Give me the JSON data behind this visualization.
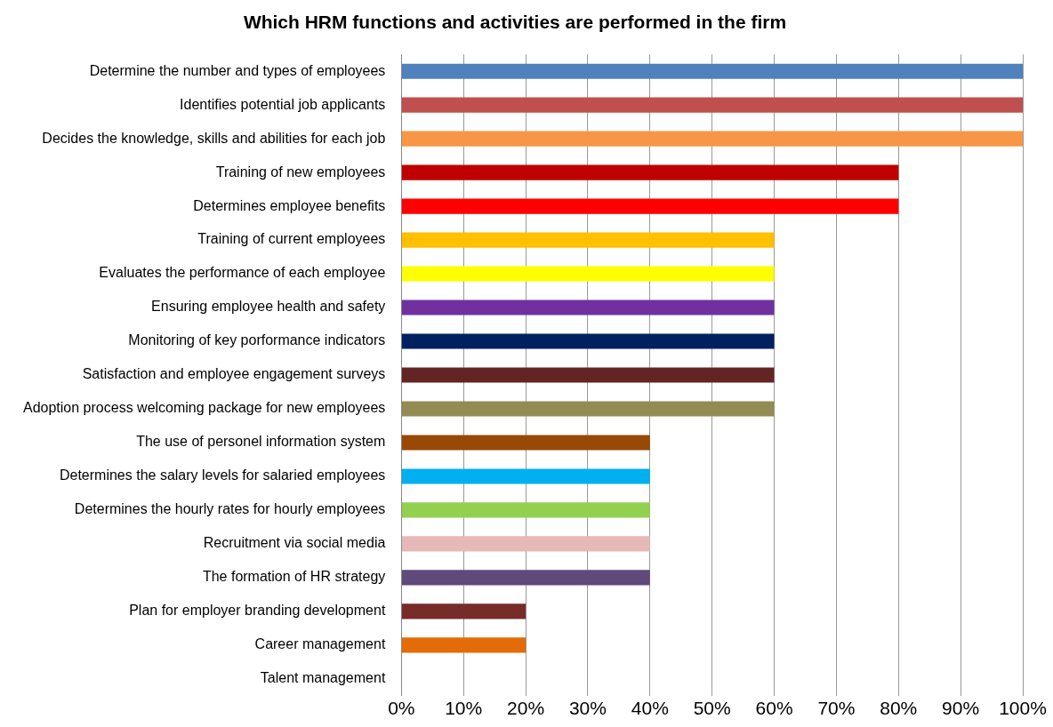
{
  "chart_data": {
    "type": "bar",
    "orientation": "horizontal",
    "title": "Which HRM functions and activities are performed in the firm",
    "categories": [
      "Determine the number and types of employees",
      "Identifies potential job applicants",
      "Decides the knowledge, skills and abilities for each job",
      "Training of new employees",
      "Determines employee benefits",
      "Training of current employees",
      "Evaluates the performance of each employee",
      "Ensuring employee health and safety",
      "Monitoring of key porformance indicators",
      "Satisfaction and employee engagement surveys",
      "Adoption process welcoming package for new employees",
      "The use of personel information system",
      "Determines the salary levels for salaried employees",
      "Determines the hourly rates for hourly employees",
      "Recruitment via social media",
      "The formation of HR strategy",
      "Plan for employer branding development",
      "Career management",
      "Talent management"
    ],
    "values": [
      100,
      100,
      100,
      80,
      80,
      60,
      60,
      60,
      60,
      60,
      60,
      40,
      40,
      40,
      40,
      40,
      20,
      20,
      0
    ],
    "colors": [
      "#4f81bd",
      "#c0504d",
      "#f79646",
      "#c00000",
      "#ff0000",
      "#ffc000",
      "#ffff00",
      "#7030a0",
      "#002060",
      "#632523",
      "#948a54",
      "#984807",
      "#00b0f0",
      "#92d050",
      "#e6b9b8",
      "#604a7b",
      "#772c2a",
      "#e36c09",
      "#4bacc6"
    ],
    "xlim": [
      0,
      100
    ],
    "xticks": [
      {
        "value": 0,
        "label": "0%"
      },
      {
        "value": 10,
        "label": "10%"
      },
      {
        "value": 20,
        "label": "20%"
      },
      {
        "value": 30,
        "label": "30%"
      },
      {
        "value": 40,
        "label": "40%"
      },
      {
        "value": 50,
        "label": "50%"
      },
      {
        "value": 60,
        "label": "60%"
      },
      {
        "value": 70,
        "label": "70%"
      },
      {
        "value": 80,
        "label": "80%"
      },
      {
        "value": 90,
        "label": "90%"
      },
      {
        "value": 100,
        "label": "100%"
      }
    ],
    "grid": "x",
    "legend": false
  }
}
